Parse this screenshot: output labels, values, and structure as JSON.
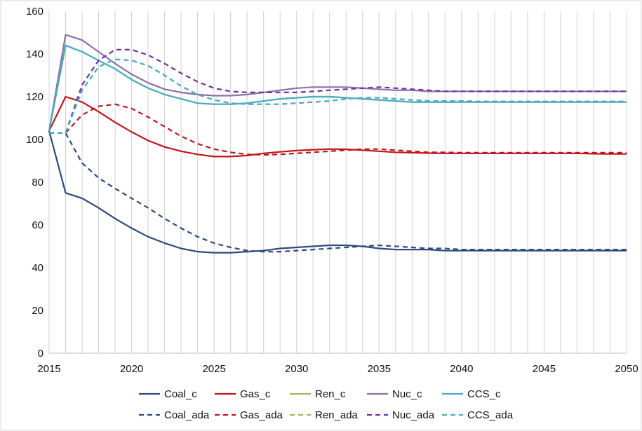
{
  "chart_data": {
    "type": "line",
    "title": "",
    "xlabel": "",
    "ylabel": "",
    "xlim": [
      2015,
      2050
    ],
    "ylim": [
      0,
      160
    ],
    "x_ticks": [
      "2015",
      "2020",
      "2025",
      "2030",
      "2035",
      "2040",
      "2045",
      "2050"
    ],
    "y_ticks": [
      "0",
      "20",
      "40",
      "60",
      "80",
      "100",
      "120",
      "140",
      "160"
    ],
    "grid": "vertical gridlines at each year, horizontal line at 0",
    "legend_position": "bottom",
    "x": [
      2015,
      2016,
      2017,
      2018,
      2019,
      2020,
      2021,
      2022,
      2023,
      2024,
      2025,
      2026,
      2027,
      2028,
      2029,
      2030,
      2031,
      2032,
      2033,
      2034,
      2035,
      2036,
      2037,
      2038,
      2039,
      2040,
      2041,
      2042,
      2043,
      2044,
      2045,
      2046,
      2047,
      2048,
      2049,
      2050
    ],
    "series": [
      {
        "name": "Coal_c",
        "color": "#2e4b7d",
        "dash": "solid",
        "values": [
          104,
          75,
          72.5,
          68,
          63,
          58.5,
          54.5,
          51.5,
          49,
          47.5,
          47,
          47,
          47.5,
          48,
          49,
          49.5,
          50,
          50.5,
          50.5,
          50,
          49,
          48.5,
          48.5,
          48.5,
          48,
          48,
          48,
          48,
          48,
          48,
          48,
          48,
          48,
          48,
          48,
          48
        ]
      },
      {
        "name": "Gas_c",
        "color": "#c0141c",
        "dash": "solid",
        "values": [
          104,
          120,
          117.5,
          113,
          108,
          103.5,
          99.5,
          96.5,
          94.5,
          93,
          92,
          92,
          92.5,
          93.5,
          94.2,
          94.8,
          95.2,
          95.5,
          95.4,
          95,
          94.5,
          94,
          93.8,
          93.6,
          93.5,
          93.5,
          93.5,
          93.5,
          93.5,
          93.5,
          93.5,
          93.5,
          93.5,
          93.3,
          93.2,
          93.2
        ]
      },
      {
        "name": "Ren_c",
        "color": "#9bbb59",
        "dash": "solid",
        "values": [
          104,
          144,
          141,
          137,
          133,
          128,
          124,
          121,
          119,
          117,
          116.5,
          116.5,
          117,
          118,
          119,
          119.5,
          120,
          120,
          119.5,
          119,
          118.5,
          118,
          117.5,
          117.5,
          117.5,
          117.5,
          117.5,
          117.5,
          117.5,
          117.5,
          117.5,
          117.5,
          117.5,
          117.5,
          117.5,
          117.5
        ]
      },
      {
        "name": "Nuc_c",
        "color": "#8e6fa8",
        "dash": "solid",
        "values": [
          104,
          149,
          146.5,
          141,
          135.5,
          130.5,
          126.5,
          123.5,
          122,
          121,
          120.5,
          120.5,
          121,
          122,
          123,
          124,
          124.5,
          124.5,
          124.5,
          124,
          123.5,
          123,
          123,
          122.5,
          122.5,
          122.5,
          122.5,
          122.5,
          122.5,
          122.5,
          122.5,
          122.5,
          122.5,
          122.5,
          122.5,
          122.5
        ]
      },
      {
        "name": "CCS_c",
        "color": "#4bacc6",
        "dash": "solid",
        "values": [
          104,
          144,
          141,
          137,
          133,
          128,
          124,
          121,
          119,
          117,
          116.5,
          116.5,
          117,
          118,
          119,
          119.5,
          120,
          120,
          119.5,
          119,
          118.5,
          118,
          117.5,
          117.5,
          117.5,
          117.5,
          117.5,
          117.5,
          117.5,
          117.5,
          117.5,
          117.5,
          117.5,
          117.5,
          117.5,
          117.5
        ]
      },
      {
        "name": "Coal_ada",
        "color": "#2e4b7d",
        "dash": "dashed",
        "values": [
          103,
          103,
          89,
          82,
          77,
          72.5,
          68,
          63,
          58.5,
          54.5,
          51.5,
          49.5,
          48,
          47.5,
          47.5,
          48,
          48.5,
          49,
          49.5,
          50,
          50.5,
          50,
          49.5,
          49,
          49,
          48.5,
          48.5,
          48.5,
          48.5,
          48.5,
          48.5,
          48.5,
          48.5,
          48.5,
          48.5,
          48.5
        ]
      },
      {
        "name": "Gas_ada",
        "color": "#c0141c",
        "dash": "dashed",
        "values": [
          103,
          103,
          111.5,
          115.5,
          116.5,
          114.5,
          110.5,
          106,
          101.5,
          98,
          95.5,
          94,
          93,
          92.8,
          93,
          93.5,
          94,
          94.5,
          95,
          95.5,
          95.5,
          95,
          94.5,
          94,
          94,
          93.8,
          93.8,
          93.8,
          93.8,
          93.8,
          93.8,
          93.8,
          93.8,
          93.8,
          93.8,
          93.8
        ]
      },
      {
        "name": "Ren_ada",
        "color": "#9bbb59",
        "dash": "dashed",
        "values": [
          103,
          103,
          123,
          134,
          137.5,
          137,
          134.5,
          130,
          125,
          121,
          118.5,
          117,
          116.5,
          116.5,
          116.5,
          117,
          117.5,
          118,
          119,
          119.5,
          119.5,
          119,
          118.5,
          118,
          118,
          118,
          117.8,
          117.8,
          117.8,
          117.8,
          117.8,
          117.8,
          117.8,
          117.8,
          117.8,
          117.8
        ]
      },
      {
        "name": "Nuc_ada",
        "color": "#7030a0",
        "dash": "dashed",
        "values": [
          103,
          103,
          125.5,
          137,
          142,
          142,
          139.5,
          135.5,
          131,
          127,
          124,
          122.5,
          122,
          122,
          122,
          122,
          122.5,
          123,
          123.5,
          124,
          124.5,
          124,
          123.5,
          123,
          122.5,
          122.5,
          122.5,
          122.5,
          122.5,
          122.5,
          122.5,
          122.5,
          122.5,
          122.5,
          122.5,
          122.5
        ]
      },
      {
        "name": "CCS_ada",
        "color": "#4bacc6",
        "dash": "dashed",
        "values": [
          103,
          103,
          123,
          134,
          137.5,
          137,
          134.5,
          130,
          125,
          121,
          118.5,
          117,
          116.5,
          116.5,
          116.5,
          117,
          117.5,
          118,
          119,
          119.5,
          119.5,
          119,
          118.5,
          118,
          118,
          118,
          117.8,
          117.8,
          117.8,
          117.8,
          117.8,
          117.8,
          117.8,
          117.8,
          117.8,
          117.8
        ]
      }
    ],
    "legend_rows": [
      [
        "Coal_c",
        "Gas_c",
        "Ren_c",
        "Nuc_c",
        "CCS_c"
      ],
      [
        "Coal_ada",
        "Gas_ada",
        "Ren_ada",
        "Nuc_ada",
        "CCS_ada"
      ]
    ]
  }
}
